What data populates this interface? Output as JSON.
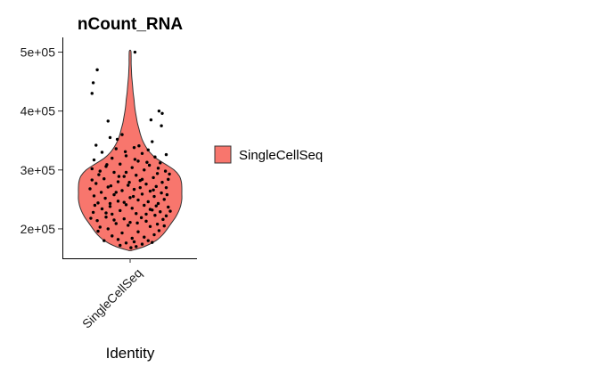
{
  "chart_data": {
    "type": "violin",
    "title": "nCount_RNA",
    "xlabel": "Identity",
    "ylabel": "",
    "categories": [
      "SingleCellSeq"
    ],
    "ylim": [
      150000,
      525000
    ],
    "yticks": [
      200000,
      300000,
      400000,
      500000
    ],
    "ytick_labels": [
      "2e+05",
      "3e+05",
      "4e+05",
      "5e+05"
    ],
    "legend": {
      "position": "right",
      "entries": [
        {
          "label": "SingleCellSeq",
          "color": "#F8766D"
        }
      ]
    },
    "grid": false,
    "fill_color": "#F8766D",
    "point_color": "#000000",
    "violin_profile": [
      [
        163000,
        0.02
      ],
      [
        170000,
        0.28
      ],
      [
        180000,
        0.5
      ],
      [
        190000,
        0.63
      ],
      [
        200000,
        0.72
      ],
      [
        210000,
        0.8
      ],
      [
        220000,
        0.88
      ],
      [
        230000,
        0.94
      ],
      [
        240000,
        0.98
      ],
      [
        250000,
        1.0
      ],
      [
        260000,
        1.0
      ],
      [
        270000,
        1.0
      ],
      [
        280000,
        0.99
      ],
      [
        290000,
        0.95
      ],
      [
        300000,
        0.85
      ],
      [
        310000,
        0.68
      ],
      [
        320000,
        0.5
      ],
      [
        330000,
        0.38
      ],
      [
        340000,
        0.3
      ],
      [
        350000,
        0.24
      ],
      [
        360000,
        0.2
      ],
      [
        370000,
        0.17
      ],
      [
        380000,
        0.14
      ],
      [
        390000,
        0.12
      ],
      [
        400000,
        0.1
      ],
      [
        410000,
        0.085
      ],
      [
        420000,
        0.075
      ],
      [
        430000,
        0.06
      ],
      [
        440000,
        0.05
      ],
      [
        450000,
        0.04
      ],
      [
        460000,
        0.03
      ],
      [
        470000,
        0.025
      ],
      [
        480000,
        0.02
      ],
      [
        490000,
        0.02
      ],
      [
        502000,
        0.015
      ]
    ],
    "points": [
      [
        -0.82,
        470000
      ],
      [
        -0.92,
        448000
      ],
      [
        -0.95,
        430000
      ],
      [
        0.12,
        500000
      ],
      [
        0.72,
        400000
      ],
      [
        0.8,
        396000
      ],
      [
        0.52,
        385000
      ],
      [
        -0.55,
        383000
      ],
      [
        0.78,
        375000
      ],
      [
        -0.2,
        360000
      ],
      [
        -0.5,
        355000
      ],
      [
        0.55,
        348000
      ],
      [
        -0.85,
        342000
      ],
      [
        0.1,
        338000
      ],
      [
        -0.35,
        336000
      ],
      [
        0.45,
        334000
      ],
      [
        -0.7,
        330000
      ],
      [
        0.3,
        328000
      ],
      [
        0.9,
        326000
      ],
      [
        -0.1,
        324000
      ],
      [
        0.62,
        322000
      ],
      [
        -0.45,
        320000
      ],
      [
        -0.9,
        317000
      ],
      [
        0.2,
        315000
      ],
      [
        0.75,
        312000
      ],
      [
        -0.25,
        310000
      ],
      [
        0.48,
        308000
      ],
      [
        -0.6,
        306000
      ],
      [
        0.05,
        304000
      ],
      [
        -0.95,
        302000
      ],
      [
        0.35,
        300000
      ],
      [
        0.88,
        298000
      ],
      [
        -0.4,
        296000
      ],
      [
        0.68,
        294000
      ],
      [
        -0.78,
        292000
      ],
      [
        0.15,
        291000
      ],
      [
        -0.15,
        289000
      ],
      [
        0.58,
        287000
      ],
      [
        -0.65,
        285000
      ],
      [
        0.95,
        284000
      ],
      [
        0.25,
        282000
      ],
      [
        -0.3,
        280000
      ],
      [
        0.8,
        279000
      ],
      [
        -0.85,
        277000
      ],
      [
        0.4,
        276000
      ],
      [
        -0.05,
        274000
      ],
      [
        0.65,
        272000
      ],
      [
        -0.55,
        271000
      ],
      [
        0.9,
        270000
      ],
      [
        -1.0,
        268000
      ],
      [
        0.1,
        267000
      ],
      [
        -0.2,
        265000
      ],
      [
        0.5,
        264000
      ],
      [
        -0.72,
        262000
      ],
      [
        0.78,
        261000
      ],
      [
        0.3,
        259000
      ],
      [
        -0.4,
        258000
      ],
      [
        -0.9,
        256000
      ],
      [
        0.6,
        255000
      ],
      [
        0.0,
        253000
      ],
      [
        -0.62,
        252000
      ],
      [
        0.85,
        250000
      ],
      [
        0.2,
        249000
      ],
      [
        -0.3,
        247000
      ],
      [
        0.45,
        246000
      ],
      [
        -0.8,
        244000
      ],
      [
        0.7,
        243000
      ],
      [
        -0.1,
        241000
      ],
      [
        0.35,
        240000
      ],
      [
        -0.5,
        238000
      ],
      [
        0.95,
        237000
      ],
      [
        0.05,
        235000
      ],
      [
        -0.7,
        234000
      ],
      [
        0.55,
        232000
      ],
      [
        -0.25,
        231000
      ],
      [
        0.75,
        229000
      ],
      [
        -0.92,
        228000
      ],
      [
        0.15,
        226000
      ],
      [
        -0.45,
        225000
      ],
      [
        0.62,
        223000
      ],
      [
        0.9,
        222000
      ],
      [
        -0.6,
        220000
      ],
      [
        0.28,
        219000
      ],
      [
        -0.15,
        217000
      ],
      [
        0.82,
        216000
      ],
      [
        -0.82,
        214000
      ],
      [
        0.4,
        213000
      ],
      [
        0.0,
        211000
      ],
      [
        -0.35,
        209000
      ],
      [
        0.68,
        208000
      ],
      [
        -0.05,
        206000
      ],
      [
        0.5,
        204000
      ],
      [
        -0.75,
        203000
      ],
      [
        -0.55,
        200000
      ],
      [
        0.72,
        197000
      ],
      [
        0.2,
        195000
      ],
      [
        -0.2,
        193000
      ],
      [
        0.6,
        190000
      ],
      [
        -0.45,
        188000
      ],
      [
        0.35,
        186000
      ],
      [
        0.05,
        184000
      ],
      [
        -0.3,
        182000
      ],
      [
        0.45,
        180000
      ],
      [
        0.1,
        178000
      ],
      [
        -0.1,
        176000
      ],
      [
        0.3,
        174000
      ],
      [
        -0.25,
        172000
      ],
      [
        0.15,
        170000
      ],
      [
        0.02,
        168000
      ],
      [
        -0.65,
        180000
      ],
      [
        0.55,
        177000
      ],
      [
        -0.8,
        196000
      ],
      [
        0.85,
        205000
      ],
      [
        -0.98,
        218000
      ],
      [
        1.0,
        230000
      ],
      [
        -0.88,
        240000
      ],
      [
        0.92,
        258000
      ],
      [
        -0.95,
        283000
      ],
      [
        0.98,
        293000
      ],
      [
        -0.75,
        298000
      ],
      [
        0.7,
        303000
      ],
      [
        -0.5,
        243000
      ],
      [
        0.5,
        233000
      ],
      [
        -0.1,
        296000
      ],
      [
        0.25,
        270000
      ],
      [
        -0.35,
        262000
      ],
      [
        0.08,
        255000
      ],
      [
        -0.15,
        245000
      ],
      [
        0.4,
        225000
      ],
      [
        -0.4,
        215000
      ],
      [
        0.18,
        210000
      ],
      [
        -0.6,
        227000
      ],
      [
        0.65,
        239000
      ],
      [
        -0.28,
        289000
      ],
      [
        0.3,
        284000
      ],
      [
        -0.02,
        279000
      ],
      [
        0.58,
        266000
      ],
      [
        -0.48,
        273000
      ],
      [
        0.12,
        318000
      ],
      [
        -0.58,
        309000
      ],
      [
        0.42,
        313000
      ],
      [
        -0.12,
        331000
      ],
      [
        0.22,
        341000
      ],
      [
        -0.32,
        352000
      ]
    ]
  }
}
